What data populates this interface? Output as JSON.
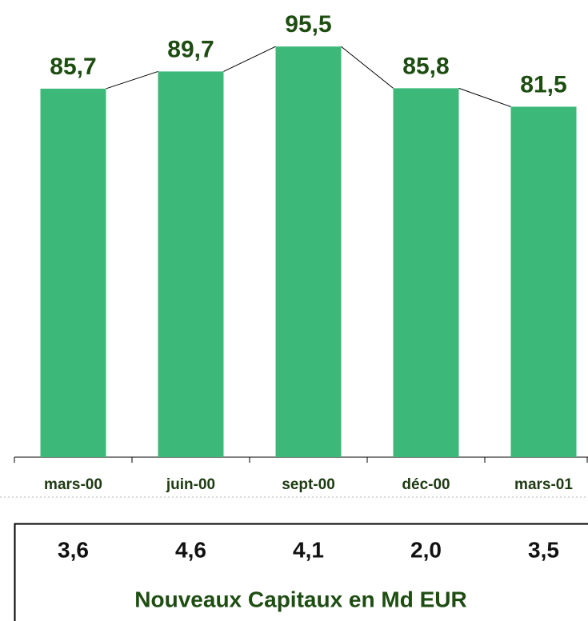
{
  "chart_data": {
    "type": "bar",
    "categories": [
      "mars-00",
      "juin-00",
      "sept-00",
      "déc-00",
      "mars-01"
    ],
    "values": [
      85.7,
      89.7,
      95.5,
      85.8,
      81.5
    ],
    "value_labels": [
      "85,7",
      "89,7",
      "95,5",
      "85,8",
      "81,5"
    ],
    "color": "#3cb878",
    "ylim": [
      0,
      100
    ]
  },
  "table": {
    "values": [
      "3,6",
      "4,6",
      "4,1",
      "2,0",
      "3,5"
    ],
    "title": "Nouveaux Capitaux en Md EUR"
  }
}
